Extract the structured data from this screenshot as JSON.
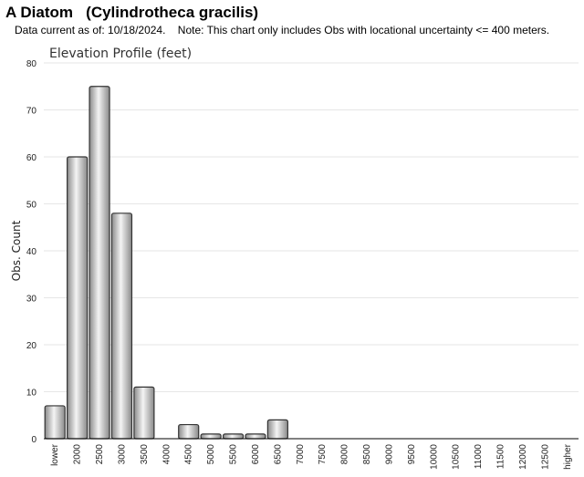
{
  "header": {
    "title": "A Diatom   (Cylindrotheca gracilis)",
    "subtitle": "Data current as of: 10/18/2024.    Note: This chart only includes Obs with locational uncertainty <= 400 meters."
  },
  "chart_data": {
    "type": "bar",
    "title": "Elevation Profile (feet)",
    "xlabel": "",
    "ylabel": "Obs. Count",
    "ylim": [
      0,
      80
    ],
    "yticks": [
      0,
      10,
      20,
      30,
      40,
      50,
      60,
      70,
      80
    ],
    "grid": true,
    "categories": [
      "lower",
      "2000",
      "2500",
      "3000",
      "3500",
      "4000",
      "4500",
      "5000",
      "5500",
      "6000",
      "6500",
      "7000",
      "7500",
      "8000",
      "8500",
      "9000",
      "9500",
      "10000",
      "10500",
      "11000",
      "11500",
      "12000",
      "12500",
      "higher"
    ],
    "values": [
      7,
      60,
      75,
      48,
      11,
      0,
      3,
      1,
      1,
      1,
      4,
      0,
      0,
      0,
      0,
      0,
      0,
      0,
      0,
      0,
      0,
      0,
      0,
      0
    ],
    "colors": {
      "bar_light": "#f4f4f4",
      "bar_dark": "#8a8a8a",
      "bar_stroke": "#333333",
      "grid": "#e6e6e6",
      "axis": "#000000"
    }
  }
}
